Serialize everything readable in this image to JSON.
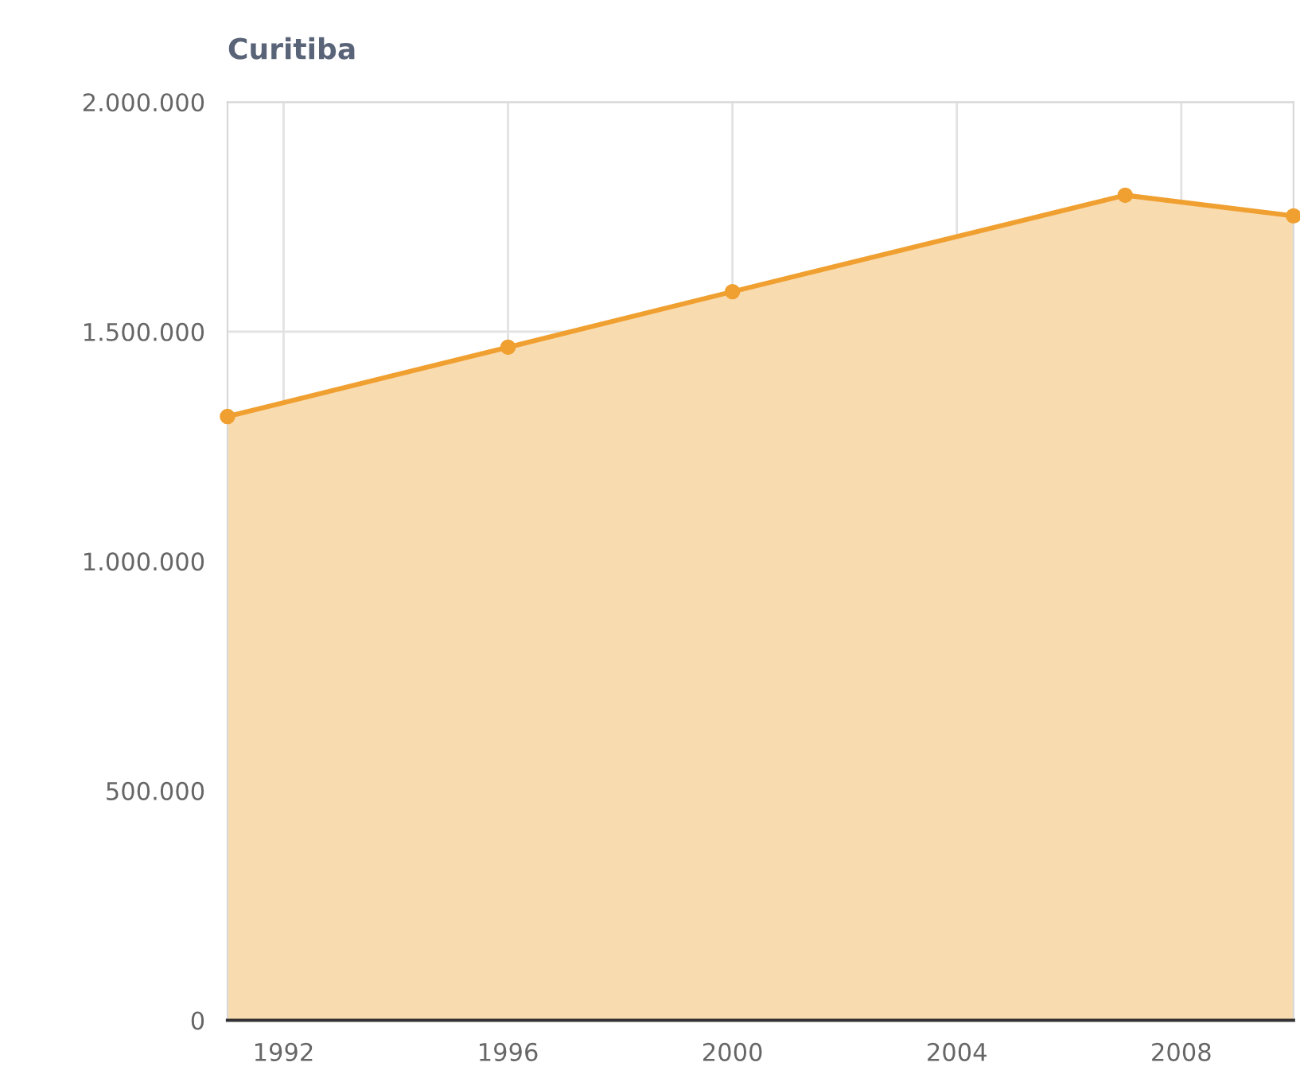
{
  "chart_data": {
    "type": "area",
    "title": "Curitiba",
    "x": [
      1991,
      1996,
      2000,
      2007,
      2010
    ],
    "series": [
      {
        "color": "#f0a030",
        "values": [
          1315000,
          1466000,
          1587000,
          1797000,
          1752000
        ]
      }
    ],
    "xlim": [
      1991,
      2010
    ],
    "xticks": [
      1992,
      1996,
      2000,
      2004,
      2008
    ],
    "ylim": [
      0,
      2000000
    ],
    "yticks": [
      {
        "value": 0,
        "label": "0"
      },
      {
        "value": 500000,
        "label": "500.000"
      },
      {
        "value": 1000000,
        "label": "1.000.000"
      },
      {
        "value": 1500000,
        "label": "1.500.000"
      },
      {
        "value": 2000000,
        "label": "2.000.000"
      }
    ],
    "grid": true,
    "marker": "circle",
    "line_style": "solid",
    "legend": false
  }
}
